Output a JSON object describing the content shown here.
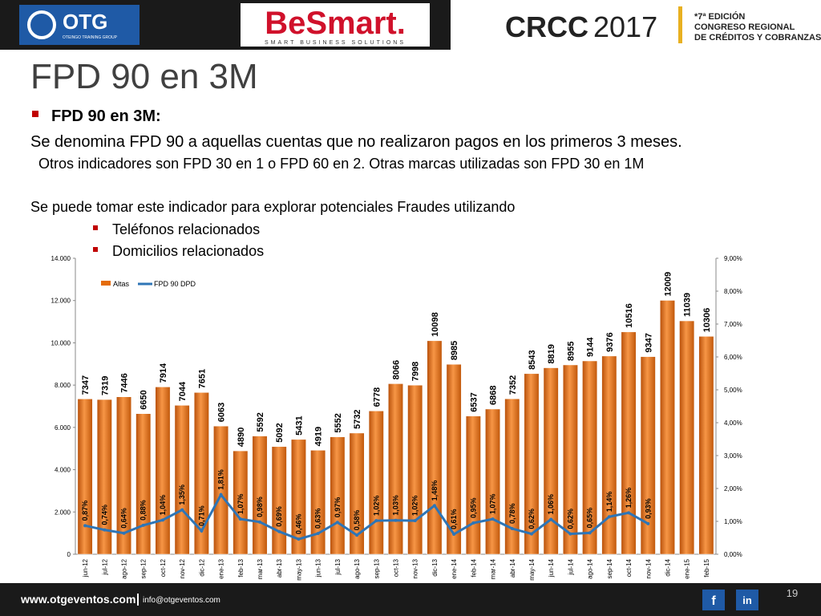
{
  "header": {
    "logo1": "OTG",
    "logo1_sub": "OTEINGO TRAINING GROUP",
    "logo2": "BeSmart.",
    "logo2_sub": "SMART BUSINESS SOLUTIONS",
    "logo3": "CRCC",
    "logo3_year": "2017",
    "edition": [
      "*7ª EDICIÓN",
      "CONGRESO REGIONAL",
      "DE CRÉDITOS Y COBRANZAS"
    ]
  },
  "title": "FPD 90 en 3M",
  "body": {
    "bullet": "FPD 90 en 3M:",
    "line1": "Se denomina FPD 90 a aquellas cuentas que no realizaron pagos en los primeros 3 meses.",
    "line2": "Otros indicadores son FPD 30 en 1 o FPD 60 en 2. Otras marcas utilizadas son FPD 30 en 1M",
    "line3": "Se puede tomar este indicador para explorar potenciales Fraudes utilizando",
    "subbullets": [
      "Teléfonos relacionados",
      "Domicilios relacionados"
    ]
  },
  "chart_data": {
    "type": "bar_line",
    "categories": [
      "jun-12",
      "jul-12",
      "ago-12",
      "sep-12",
      "oct-12",
      "nov-12",
      "dic-12",
      "ene-13",
      "feb-13",
      "mar-13",
      "abr-13",
      "may-13",
      "jun-13",
      "jul-13",
      "ago-13",
      "sep-13",
      "oct-13",
      "nov-13",
      "dic-13",
      "ene-14",
      "feb-14",
      "mar-14",
      "abr-14",
      "may-14",
      "jun-14",
      "jul-14",
      "ago-14",
      "sep-14",
      "oct-14",
      "nov-14",
      "dic-14",
      "ene-15",
      "feb-15"
    ],
    "series": [
      {
        "name": "Altas",
        "color": "#e46c0a",
        "values": [
          7347,
          7319,
          7446,
          6650,
          7914,
          7044,
          7651,
          6063,
          4890,
          5592,
          5092,
          5431,
          4919,
          5552,
          5732,
          6778,
          8066,
          7998,
          10098,
          8985,
          6537,
          6868,
          7352,
          8543,
          8819,
          8955,
          9144,
          9376,
          10516,
          9347,
          12009,
          11039,
          10306
        ]
      },
      {
        "name": "FPD 90 DPD",
        "color": "#2e75b6",
        "axis": "y2",
        "values": [
          0.87,
          0.74,
          0.64,
          0.88,
          1.04,
          1.35,
          0.71,
          1.81,
          1.07,
          0.98,
          0.69,
          0.46,
          0.63,
          0.97,
          0.58,
          1.02,
          1.03,
          1.02,
          1.48,
          0.61,
          0.95,
          1.07,
          0.78,
          0.62,
          1.06,
          0.62,
          0.65,
          1.14,
          1.26,
          0.93,
          null,
          null,
          null
        ],
        "value_labels": [
          "0,87%",
          "0,74%",
          "0,64%",
          "0,88%",
          "1,04%",
          "1,35%",
          "0,71%",
          "1,81%",
          "1,07%",
          "0,98%",
          "0,69%",
          "0,46%",
          "0,63%",
          "0,97%",
          "0,58%",
          "1,02%",
          "1,03%",
          "1,02%",
          "1,48%",
          "0,61%",
          "0,95%",
          "1,07%",
          "0,78%",
          "0,62%",
          "1,06%",
          "0,62%",
          "0,65%",
          "1,14%",
          "1,26%",
          "0,93%",
          null,
          null,
          null
        ]
      }
    ],
    "ylim": [
      0,
      14000
    ],
    "yticks": [
      0,
      {
        "value": 2000,
        "label": "2.000"
      },
      {
        "value": 4000,
        "label": "4.000"
      },
      {
        "value": 6000,
        "label": "6.000"
      },
      {
        "value": 8000,
        "label": "8.000"
      },
      {
        "value": 10000,
        "label": "10.000"
      },
      {
        "value": 12000,
        "label": "12.000"
      },
      {
        "value": 14000,
        "label": "14.000"
      }
    ],
    "y2lim": [
      0,
      9
    ],
    "y2ticks": [
      {
        "value": 0,
        "label": "0,00%"
      },
      {
        "value": 1,
        "label": "1,00%"
      },
      {
        "value": 2,
        "label": "2,00%"
      },
      {
        "value": 3,
        "label": "3,00%"
      },
      {
        "value": 4,
        "label": "4,00%"
      },
      {
        "value": 5,
        "label": "5,00%"
      },
      {
        "value": 6,
        "label": "6,00%"
      },
      {
        "value": 7,
        "label": "7,00%"
      },
      {
        "value": 8,
        "label": "8,00%"
      },
      {
        "value": 9,
        "label": "9,00%"
      }
    ],
    "legend": "top-left"
  },
  "footer": {
    "site": "www.otgeventos.com",
    "email": "info@otgeventos.com",
    "page": "19",
    "fb": "f",
    "in": "in"
  }
}
